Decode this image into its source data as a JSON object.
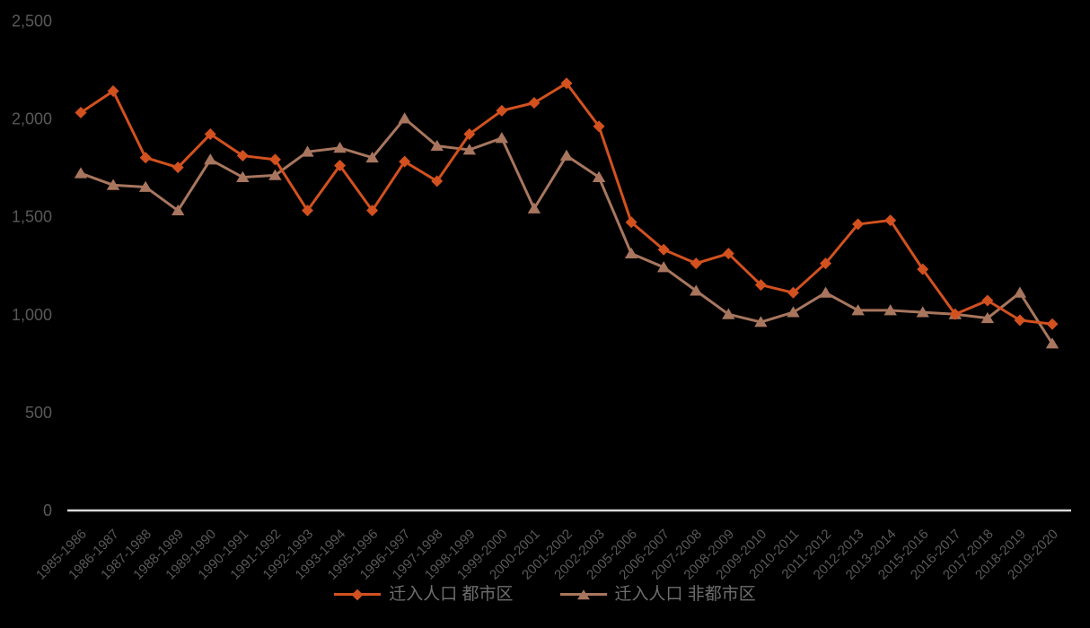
{
  "chart_data": {
    "type": "line",
    "title": "",
    "xlabel": "",
    "ylabel": "",
    "categories": [
      "1985-1986",
      "1986-1987",
      "1987-1988",
      "1988-1989",
      "1989-1990",
      "1990-1991",
      "1991-1992",
      "1992-1993",
      "1993-1994",
      "1995-1996",
      "1996-1997",
      "1997-1998",
      "1998-1999",
      "1999-2000",
      "2000-2001",
      "2001-2002",
      "2002-2003",
      "2005-2006",
      "2006-2007",
      "2007-2008",
      "2008-2009",
      "2009-2010",
      "2010-2011",
      "2011-2012",
      "2012-2013",
      "2013-2014",
      "2015-2016",
      "2016-2017",
      "2017-2018",
      "2018-2019",
      "2019-2020"
    ],
    "series": [
      {
        "name": "迁入人口 都市区",
        "marker": "diamond",
        "color": "#D2511F",
        "values": [
          2030,
          2140,
          1800,
          1750,
          1920,
          1810,
          1790,
          1530,
          1760,
          1530,
          1780,
          1680,
          1920,
          2040,
          2080,
          2180,
          1960,
          1470,
          1330,
          1260,
          1310,
          1150,
          1110,
          1260,
          1460,
          1480,
          1230,
          1000,
          1070,
          970,
          950
        ]
      },
      {
        "name": "迁入人口 非都市区",
        "marker": "triangle",
        "color": "#A8765E",
        "values": [
          1720,
          1660,
          1650,
          1530,
          1790,
          1700,
          1710,
          1830,
          1850,
          1800,
          2000,
          1860,
          1840,
          1900,
          1540,
          1810,
          1700,
          1310,
          1240,
          1120,
          1000,
          960,
          1010,
          1110,
          1020,
          1020,
          1010,
          1000,
          980,
          1110,
          850
        ]
      }
    ],
    "ylim": [
      0,
      2500
    ],
    "yticks": [
      0,
      500,
      1000,
      1500,
      2000,
      2500
    ],
    "ytick_labels": [
      "0",
      "500",
      "1,000",
      "1,500",
      "2,000",
      "2,500"
    ],
    "grid": false,
    "legend_position": "bottom",
    "colors": {
      "background": "#000000",
      "axis_line": "#D9D9D9",
      "tick_text": "#595959",
      "legend_text": "#6E6E6E"
    }
  }
}
